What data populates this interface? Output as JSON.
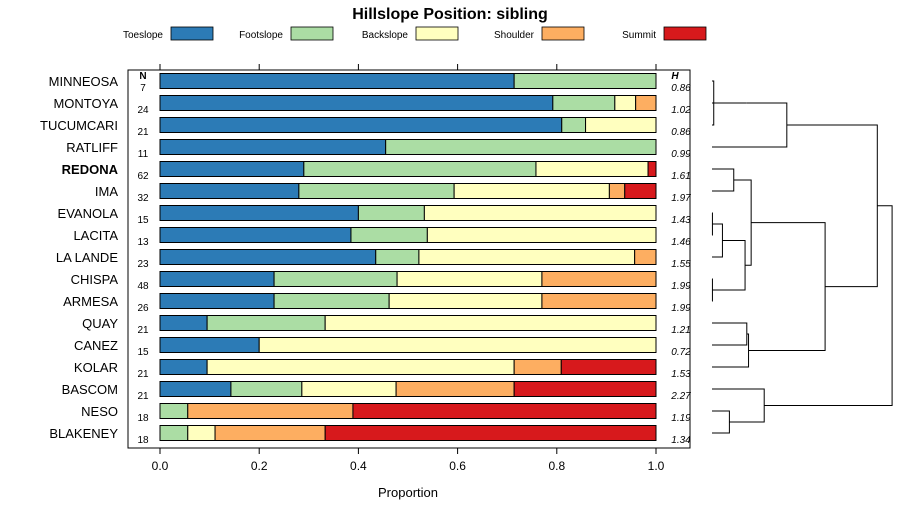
{
  "chart_data": {
    "type": "bar",
    "orientation": "horizontal",
    "stacked": true,
    "title": "Hillslope Position: sibling",
    "xlabel": "Proportion",
    "ylabel": "",
    "xlim": [
      0,
      1
    ],
    "xticks": [
      "0.0",
      "0.2",
      "0.4",
      "0.6",
      "0.8",
      "1.0"
    ],
    "n_header": "N",
    "h_header": "H",
    "highlight": "REDONA",
    "legend": [
      {
        "name": "Toeslope",
        "color": "#2c7bb6"
      },
      {
        "name": "Footslope",
        "color": "#abdda4"
      },
      {
        "name": "Backslope",
        "color": "#ffffbf"
      },
      {
        "name": "Shoulder",
        "color": "#fdae61"
      },
      {
        "name": "Summit",
        "color": "#d7191c"
      }
    ],
    "categories": [
      "MINNEOSA",
      "MONTOYA",
      "TUCUMCARI",
      "RATLIFF",
      "REDONA",
      "IMA",
      "EVANOLA",
      "LACITA",
      "LA LANDE",
      "CHISPA",
      "ARMESA",
      "QUAY",
      "CANEZ",
      "KOLAR",
      "BASCOM",
      "NESO",
      "BLAKENEY"
    ],
    "n": [
      "7",
      "24",
      "21",
      "11",
      "62",
      "32",
      "15",
      "13",
      "23",
      "48",
      "26",
      "21",
      "15",
      "21",
      "21",
      "18",
      "18"
    ],
    "h": [
      "0.86",
      "1.02",
      "0.86",
      "0.99",
      "1.61",
      "1.97",
      "1.43",
      "1.46",
      "1.55",
      "1.99",
      "1.99",
      "1.21",
      "0.72",
      "1.53",
      "2.27",
      "1.19",
      "1.34"
    ],
    "series": [
      {
        "name": "Toeslope",
        "values": [
          0.714,
          0.792,
          0.81,
          0.455,
          0.29,
          0.28,
          0.4,
          0.385,
          0.435,
          0.23,
          0.23,
          0.095,
          0.2,
          0.095,
          0.143,
          0.0,
          0.0
        ]
      },
      {
        "name": "Footslope",
        "values": [
          0.286,
          0.125,
          0.048,
          0.545,
          0.468,
          0.313,
          0.133,
          0.154,
          0.087,
          0.248,
          0.232,
          0.238,
          0.0,
          0.0,
          0.143,
          0.056,
          0.056
        ]
      },
      {
        "name": "Backslope",
        "values": [
          0.0,
          0.042,
          0.142,
          0.0,
          0.226,
          0.313,
          0.467,
          0.461,
          0.435,
          0.292,
          0.308,
          0.667,
          0.8,
          0.619,
          0.19,
          0.0,
          0.055
        ]
      },
      {
        "name": "Shoulder",
        "values": [
          0.0,
          0.041,
          0.0,
          0.0,
          0.0,
          0.031,
          0.0,
          0.0,
          0.043,
          0.23,
          0.23,
          0.0,
          0.0,
          0.095,
          0.238,
          0.333,
          0.222
        ]
      },
      {
        "name": "Summit",
        "values": [
          0.0,
          0.0,
          0.0,
          0.0,
          0.016,
          0.063,
          0.0,
          0.0,
          0.0,
          0.0,
          0.0,
          0.0,
          0.0,
          0.191,
          0.286,
          0.611,
          0.667
        ]
      }
    ],
    "dendrogram": {
      "label_order": [
        "MINNEOSA",
        "MONTOYA",
        "TUCUMCARI",
        "RATLIFF",
        "REDONA",
        "IMA",
        "EVANOLA",
        "LACITA",
        "LA LANDE",
        "CHISPA",
        "ARMESA",
        "QUAY",
        "CANEZ",
        "KOLAR",
        "BASCOM",
        "NESO",
        "BLAKENEY"
      ],
      "merges": [
        {
          "a": "MINNEOSA",
          "b": "TUCUMCARI",
          "height": 0.02
        },
        {
          "a": "EVANOLA",
          "b": "LACITA",
          "height": 0.005
        },
        {
          "a": "CHISPA",
          "b": "ARMESA",
          "height": 0.005
        },
        {
          "a": "NESO",
          "b": "BLAKENEY",
          "height": 0.2
        },
        {
          "a": "EVANOLA+LACITA",
          "b": "LA LANDE",
          "height": 0.12
        },
        {
          "a": "QUAY",
          "b": "CANEZ",
          "height": 0.4
        },
        {
          "a": "MINNEOSA+TUCUMCARI",
          "b": "MONTOYA",
          "height": 0.4
        },
        {
          "a": "REDONA",
          "b": "IMA",
          "height": 0.25
        },
        {
          "a": "EVANOLA+LACITA+LA LANDE",
          "b": "CHISPA+ARMESA",
          "height": 0.38
        },
        {
          "a": "QUAY+CANEZ",
          "b": "KOLAR",
          "height": 0.42
        },
        {
          "a": "MINNEOSA+TUCUMCARI+MONTOYA",
          "b": "RATLIFF",
          "height": 0.86
        },
        {
          "a": "REDONA+IMA",
          "b": "EVANOLA+LACITA+LA LANDE+CHISPA+ARMESA",
          "height": 0.45
        },
        {
          "a": "NESO+BLAKENEY",
          "b": "BASCOM",
          "height": 0.6
        },
        {
          "a": "(REDONA..ARMESA)",
          "b": "(QUAY+CANEZ+KOLAR)",
          "height": 1.3
        },
        {
          "a": "(MINNEOSA..RATLIFF)",
          "b": "(REDONA..KOLAR)",
          "height": 1.9
        },
        {
          "a": "(all above)",
          "b": "(BASCOM+NESO+BLAKENEY)",
          "height": 2.07
        }
      ]
    }
  }
}
